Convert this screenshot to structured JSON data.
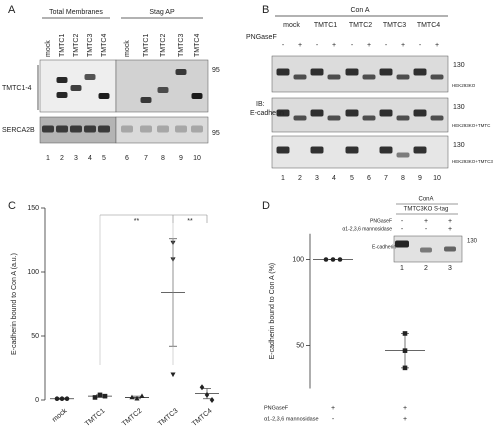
{
  "panel_a": {
    "letter": "A",
    "groups": [
      {
        "label": "Total Membranes",
        "lanes": [
          "mock",
          "TMTC1",
          "TMTC2",
          "TMTC3",
          "TMTC4"
        ]
      },
      {
        "label": "Stag AP",
        "lanes": [
          "mock",
          "TMTC1",
          "TMTC2",
          "TMTC3",
          "TMTC4"
        ]
      }
    ],
    "rows": [
      "TMTC1-4",
      "SERCA2B"
    ],
    "markers": [
      95,
      95
    ],
    "lane_numbers": [
      1,
      2,
      3,
      4,
      5,
      6,
      7,
      8,
      9,
      10
    ]
  },
  "panel_b": {
    "letter": "B",
    "header": "Con A",
    "lanes": [
      "mock",
      "TMTC1",
      "TMTC2",
      "TMTC3",
      "TMTC4"
    ],
    "treatment": {
      "label": "PNGaseF",
      "values": [
        "-",
        "+",
        "-",
        "+",
        "-",
        "+",
        "-",
        "+",
        "-",
        "+"
      ]
    },
    "probe": [
      "IB:",
      "E-cadherin"
    ],
    "markers": [
      130,
      130,
      130
    ],
    "cell_lines": [
      "HEK293KO",
      "HEK293KO+TMTC",
      "HEK293KO+TMTC3"
    ],
    "lane_numbers": [
      1,
      2,
      3,
      4,
      5,
      6,
      7,
      8,
      9,
      10
    ]
  },
  "chart_data": [
    {
      "letter": "C",
      "type": "scatter",
      "ylabel": "E-cadherin bound to Con A (a.u.)",
      "categories": [
        "mock",
        "TMTC1",
        "TMTC2",
        "TMTC3",
        "TMTC4"
      ],
      "points": [
        [
          1,
          1,
          1
        ],
        [
          2,
          4,
          3
        ],
        [
          2,
          1,
          3
        ],
        [
          123,
          110,
          20
        ],
        [
          10,
          4,
          0
        ]
      ],
      "means": [
        1,
        3,
        2,
        84,
        5
      ],
      "errors": [
        0.5,
        1,
        1,
        42,
        4
      ],
      "markers": [
        "circle",
        "square",
        "triangle-up",
        "triangle-down",
        "diamond"
      ],
      "color": "#222222",
      "ylim": [
        0,
        150
      ],
      "yticks": [
        0,
        50,
        100,
        150
      ],
      "significance": [
        {
          "label": "**",
          "pair": [
            "TMTC1",
            "TMTC3"
          ]
        },
        {
          "label": "**",
          "pair": [
            "TMTC3",
            "TMTC4"
          ]
        }
      ]
    },
    {
      "letter": "D",
      "type": "scatter",
      "ylabel": "E-cadherin bound to Con A (%)",
      "categories": [
        null,
        null
      ],
      "points": [
        [
          100,
          100,
          100
        ],
        [
          57,
          47,
          37
        ]
      ],
      "means": [
        100,
        47
      ],
      "errors": [
        0,
        10
      ],
      "markers": [
        "circle",
        "square"
      ],
      "color": "#222222",
      "ylim": [
        25,
        115
      ],
      "yticks": [
        50,
        100
      ],
      "conditions": [
        {
          "label": "PNGaseF",
          "values": [
            "+",
            "+"
          ]
        },
        {
          "label": "α1-2,3,6 mannosidase",
          "values": [
            "-",
            "+"
          ]
        }
      ],
      "inset": {
        "header": "ConA",
        "subheader": "TMTC3KO S-tag",
        "rows": [
          {
            "label": "PNGaseF",
            "values": [
              "-",
              "+",
              "+"
            ]
          },
          {
            "label": "α1-2,3,6 mannosidase",
            "values": [
              "-",
              "-",
              "+"
            ]
          }
        ],
        "band_label": "E-cadherin",
        "marker": 130,
        "lane_numbers": [
          1,
          2,
          3
        ]
      }
    }
  ]
}
